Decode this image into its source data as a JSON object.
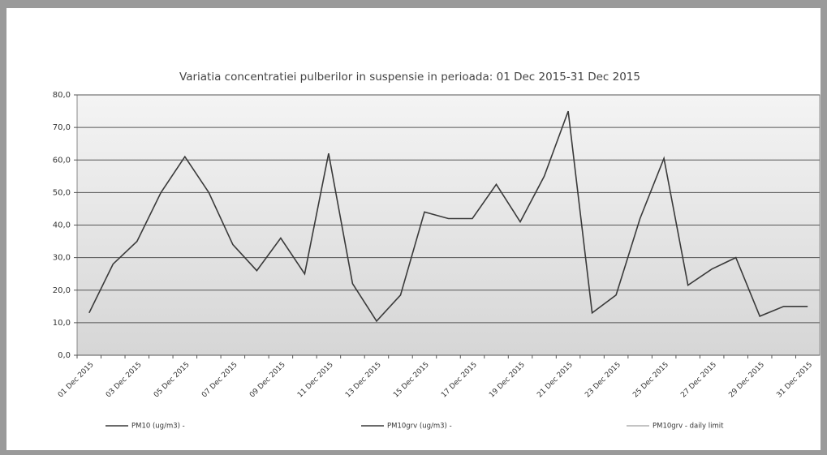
{
  "chart_data": {
    "type": "line",
    "title": "Variatia concentratiei pulberilor in suspensie in perioada: 01 Dec 2015-31 Dec 2015",
    "categories": [
      "01 Dec 2015",
      null,
      "03 Dec 2015",
      null,
      "05 Dec 2015",
      null,
      "07 Dec 2015",
      null,
      "09 Dec 2015",
      null,
      "11 Dec 2015",
      null,
      "13 Dec 2015",
      null,
      "15 Dec 2015",
      null,
      "17 Dec 2015",
      null,
      "19 Dec 2015",
      null,
      "21 Dec 2015",
      null,
      "23 Dec 2015",
      null,
      "25 Dec 2015",
      null,
      "27 Dec 2015",
      null,
      "29 Dec 2015",
      null,
      "31 Dec 2015"
    ],
    "series": [
      {
        "name": "PM10 (ug/m3) -",
        "color": "#3a3a3a",
        "values": [
          13,
          28,
          35,
          50,
          61,
          50,
          34,
          26,
          36,
          25,
          62,
          22,
          10.5,
          18.5,
          44,
          42,
          42,
          52.5,
          41,
          55,
          75,
          13,
          18.5,
          42,
          60.5,
          21.5,
          26.5,
          30,
          12,
          15,
          15
        ]
      },
      {
        "name": "PM10grv (ug/m3) -",
        "color": "#3a3a3a",
        "values": [
          null,
          null,
          null,
          null,
          null,
          null,
          null,
          null,
          null,
          null,
          null,
          null,
          null,
          null,
          null,
          null,
          null,
          null,
          null,
          null,
          null,
          null,
          null,
          null,
          null,
          null,
          null,
          null,
          null,
          null,
          null
        ]
      },
      {
        "name": "PM10grv - daily limit",
        "color": "#b0b0b0",
        "values": [
          null,
          null,
          null,
          null,
          null,
          null,
          null,
          null,
          null,
          null,
          null,
          null,
          null,
          null,
          null,
          null,
          null,
          null,
          null,
          null,
          null,
          null,
          null,
          null,
          null,
          null,
          null,
          null,
          null,
          null,
          null
        ]
      }
    ],
    "ylim": [
      0,
      80
    ],
    "yticks": [
      {
        "value": 0,
        "label": "0,0"
      },
      {
        "value": 10,
        "label": "10,0"
      },
      {
        "value": 20,
        "label": "20,0"
      },
      {
        "value": 30,
        "label": "30,0"
      },
      {
        "value": 40,
        "label": "40,0"
      },
      {
        "value": 50,
        "label": "50,0"
      },
      {
        "value": 60,
        "label": "60,0"
      },
      {
        "value": 70,
        "label": "70,0"
      },
      {
        "value": 80,
        "label": "80,0"
      }
    ],
    "grid": true
  }
}
